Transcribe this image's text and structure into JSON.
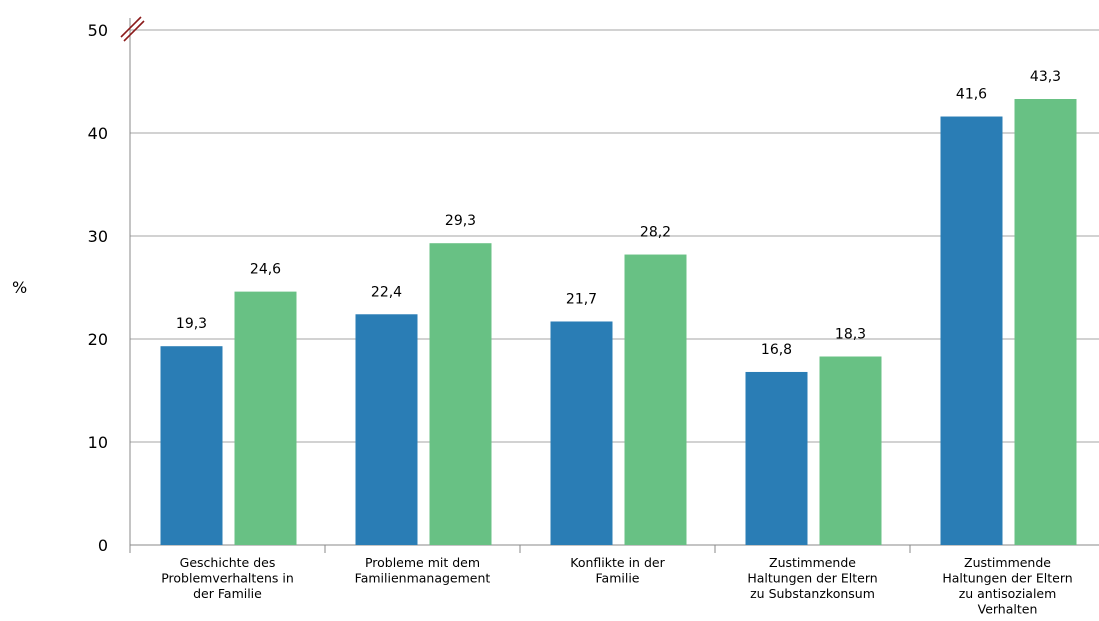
{
  "chart_data": {
    "type": "bar",
    "ylabel": "%",
    "ylim": [
      0,
      50
    ],
    "yticks": [
      "0",
      "10",
      "20",
      "30",
      "40",
      "50"
    ],
    "axis_break": true,
    "grid": true,
    "categories": [
      [
        "Geschichte des",
        "Problemverhaltens in",
        "der Familie"
      ],
      [
        "Probleme mit dem",
        "Familienmanagement"
      ],
      [
        "Konflikte in der",
        "Familie"
      ],
      [
        "Zustimmende",
        "Haltungen der Eltern",
        "zu Substanzkonsum"
      ],
      [
        "Zustimmende",
        "Haltungen der Eltern",
        "zu antisozialem",
        "Verhalten"
      ]
    ],
    "series": [
      {
        "color": "#2a7db5",
        "values": [
          19.3,
          22.4,
          21.7,
          16.8,
          41.6
        ],
        "labels": [
          "19,3",
          "22,4",
          "21,7",
          "16,8",
          "41,6"
        ]
      },
      {
        "color": "#68c184",
        "values": [
          24.6,
          29.3,
          28.2,
          18.3,
          43.3
        ],
        "labels": [
          "24,6",
          "29,3",
          "28,2",
          "18,3",
          "43,3"
        ]
      }
    ]
  }
}
